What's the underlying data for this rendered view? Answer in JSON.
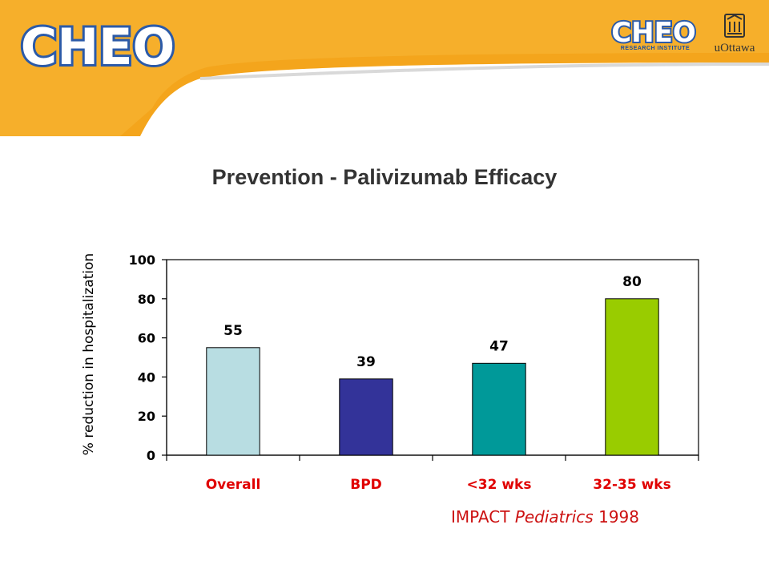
{
  "header": {
    "logo_text": "CHEO",
    "research_logo_text": "CHEO",
    "research_subtitle": "RESEARCH INSTITUTE",
    "university_name": "uOttawa",
    "colors": {
      "band": "#f4a51c",
      "band_light": "#f8c054",
      "logo_blue": "#2b5aa8"
    }
  },
  "slide": {
    "title": "Prevention - Palivizumab Efficacy"
  },
  "citation": {
    "authors": "IMPACT",
    "journal": "Pediatrics",
    "year": "1998"
  },
  "chart_data": {
    "type": "bar",
    "title": "",
    "xlabel": "",
    "ylabel": "% reduction in hospitalization",
    "categories": [
      "Overall",
      "BPD",
      "<32 wks",
      "32-35 wks"
    ],
    "values": [
      55,
      39,
      47,
      80
    ],
    "data_labels": [
      "55",
      "39",
      "47",
      "80"
    ],
    "bar_colors": [
      "#b8dde2",
      "#333399",
      "#009999",
      "#99cc00"
    ],
    "ylim": [
      0,
      100
    ],
    "yticks": [
      0,
      20,
      40,
      60,
      80,
      100
    ],
    "ytick_labels": [
      "0",
      "20",
      "40",
      "60",
      "80",
      "100"
    ],
    "grid": false,
    "legend": "none"
  }
}
